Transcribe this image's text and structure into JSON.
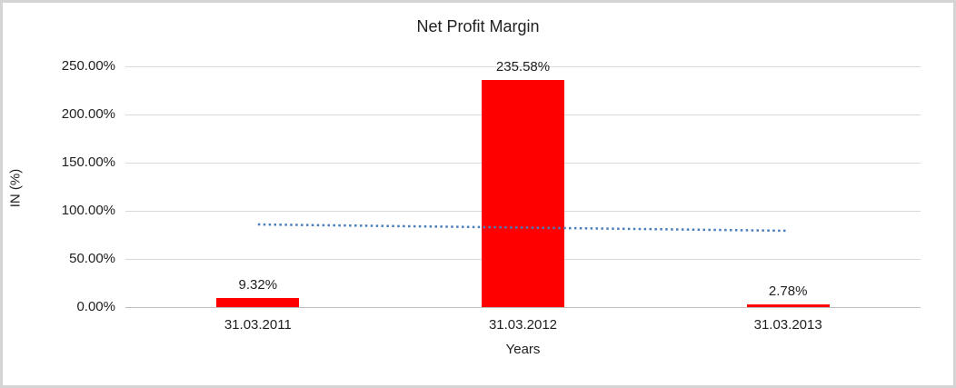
{
  "chart_data": {
    "type": "bar",
    "title": "Net Profit Margin",
    "xlabel": "Years",
    "ylabel": "IN (%)",
    "categories": [
      "31.03.2011",
      "31.03.2012",
      "31.03.2013"
    ],
    "values": [
      9.32,
      235.58,
      2.78
    ],
    "data_labels": [
      "9.32%",
      "235.58%",
      "2.78%"
    ],
    "ylim": [
      0,
      250
    ],
    "yticks": [
      {
        "value": 0,
        "label": "0.00%"
      },
      {
        "value": 50,
        "label": "50.00%"
      },
      {
        "value": 100,
        "label": "100.00%"
      },
      {
        "value": 150,
        "label": "150.00%"
      },
      {
        "value": 200,
        "label": "200.00%"
      },
      {
        "value": 250,
        "label": "250.00%"
      }
    ],
    "grid": true,
    "legend": false,
    "bar_color": "#ff0000",
    "gridline_color": "#d9d9d9",
    "trendline": {
      "type": "linear",
      "style": "dotted",
      "color": "#4a7ebb",
      "start_value": 85.83,
      "end_value": 79.29
    }
  }
}
